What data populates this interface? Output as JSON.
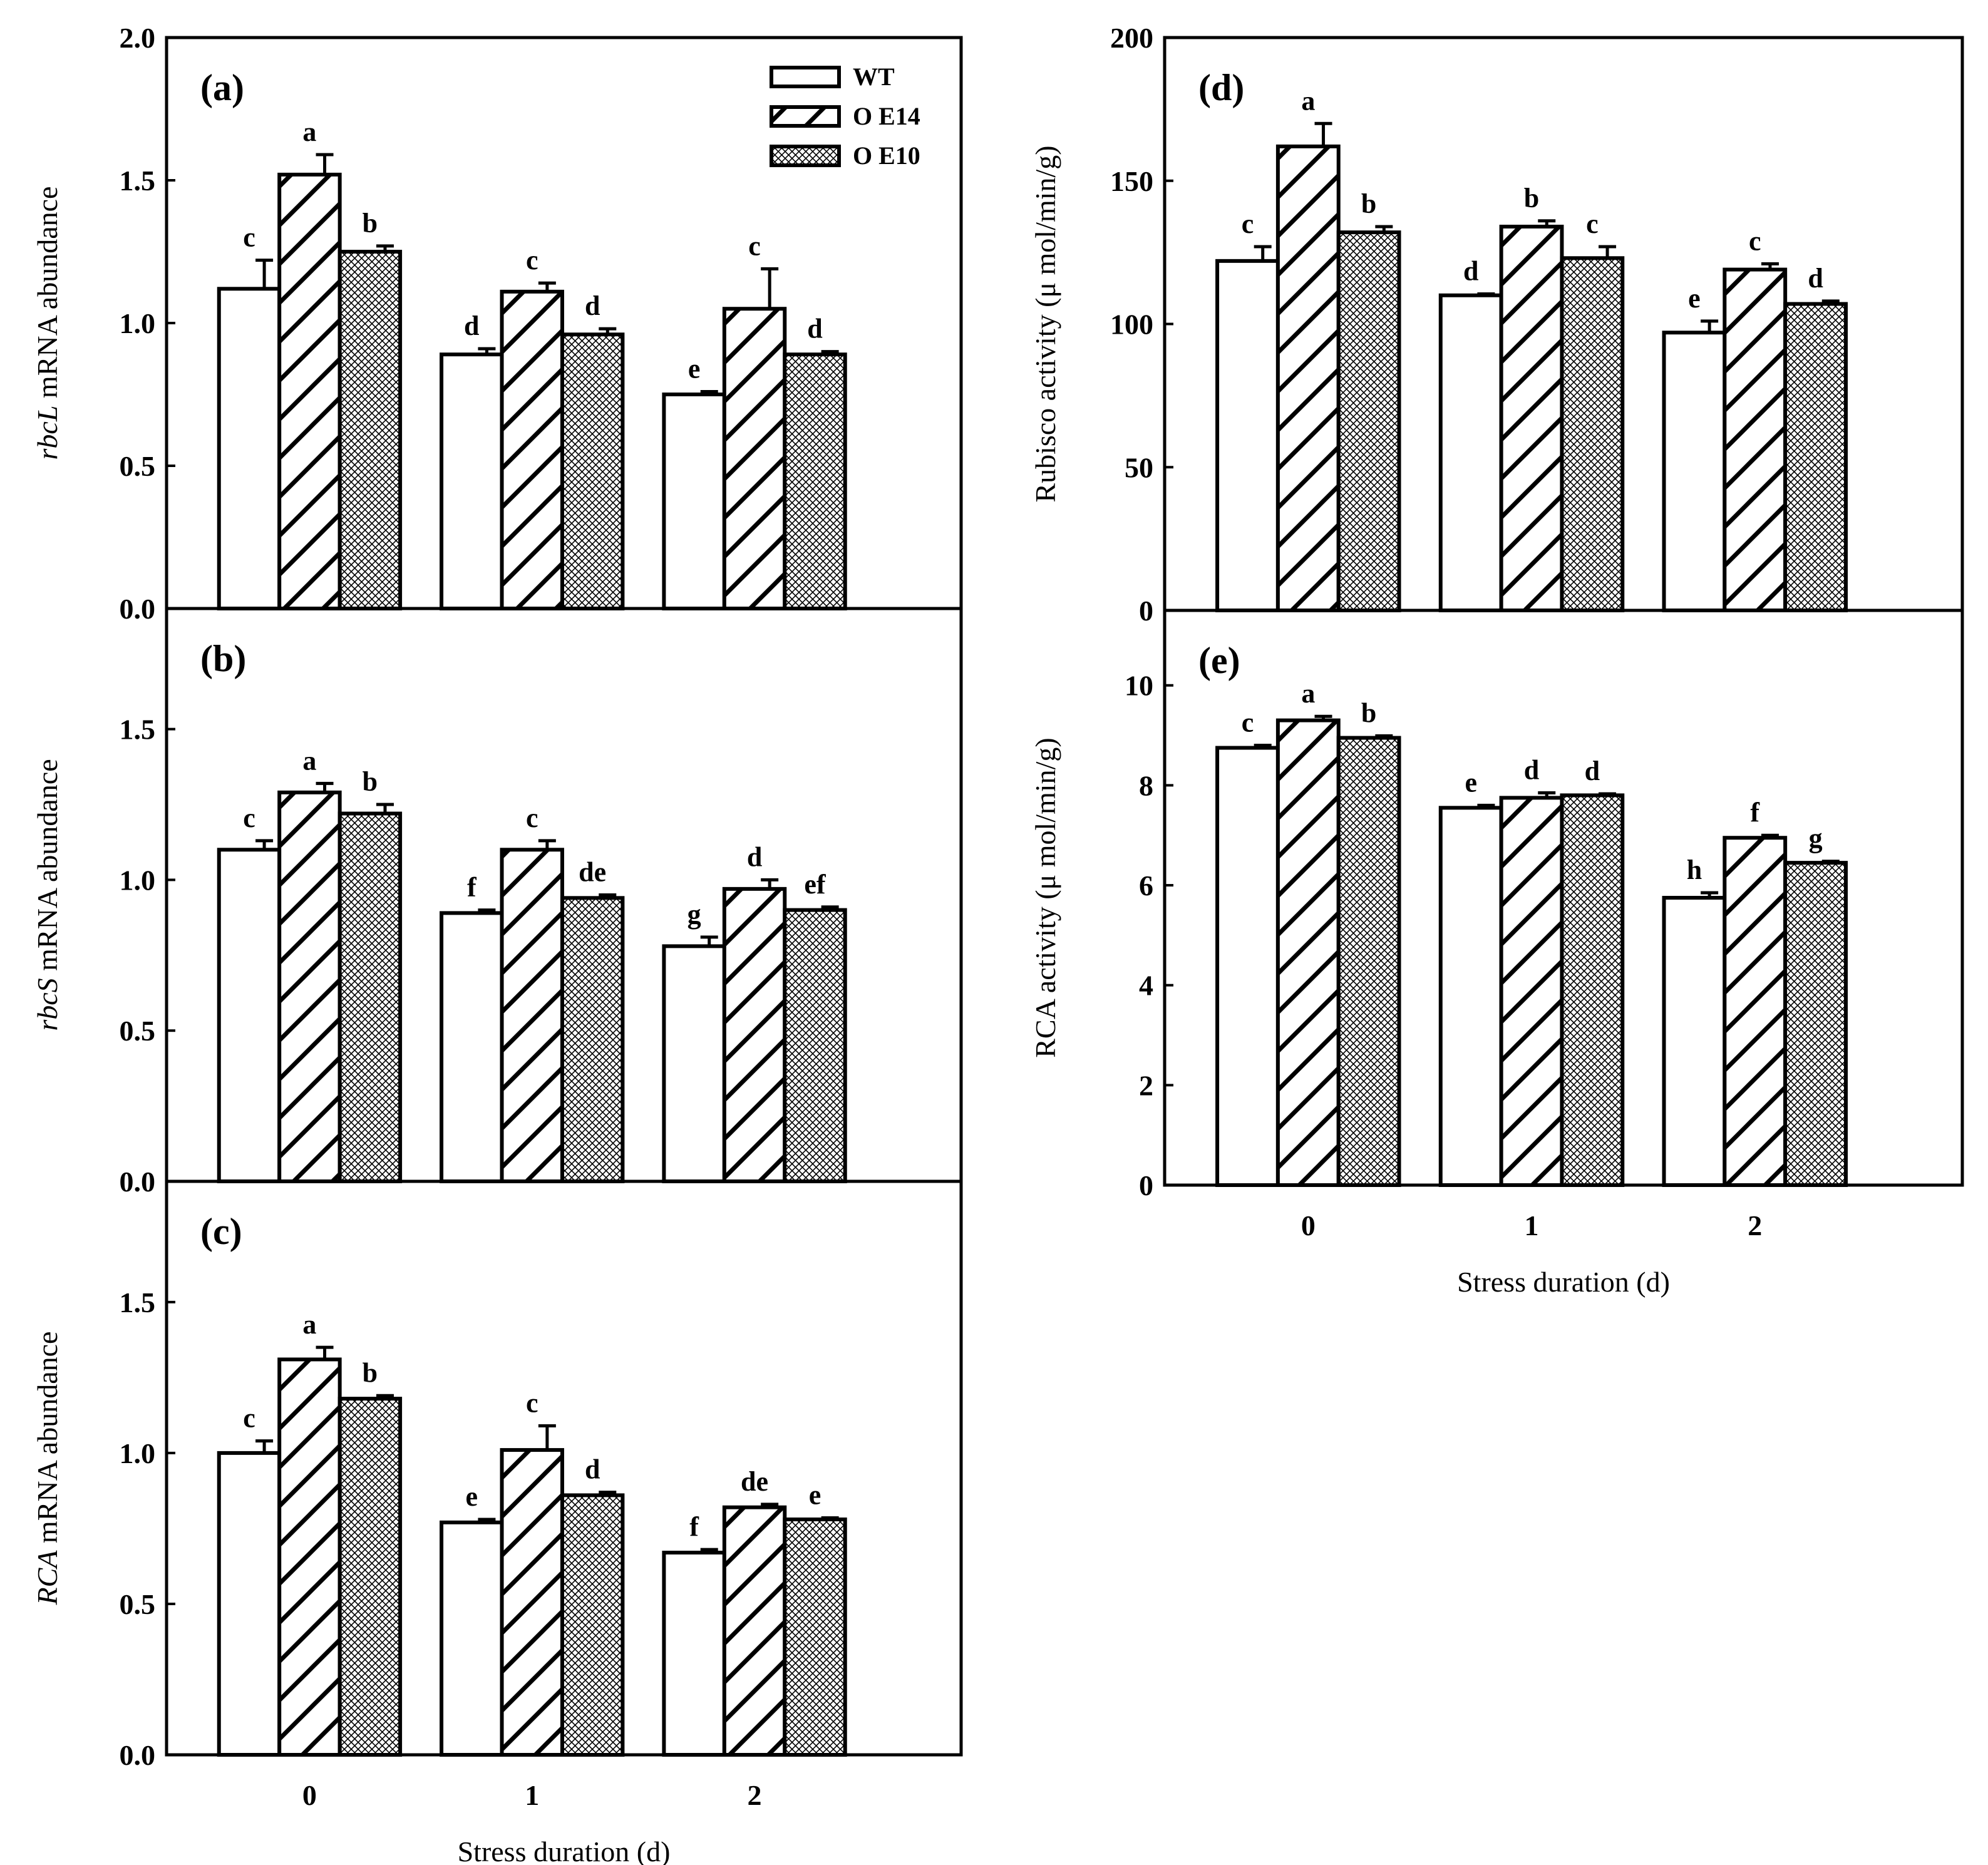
{
  "colors": {
    "WT": "#ffffff",
    "OE14": "diagonal-hatch",
    "OE10": "crosshatch",
    "axis": "#000000"
  },
  "legend": {
    "placement": "top-right of panel (a)",
    "items": [
      {
        "label": "WT",
        "pattern": "white"
      },
      {
        "label": "O E14",
        "pattern": "diagonal-hatch"
      },
      {
        "label": "O E10",
        "pattern": "crosshatch"
      }
    ]
  },
  "chart_data": [
    {
      "id": "a",
      "type": "bar",
      "panel_tag": "(a)",
      "ylabel_italic": "rbcL",
      "ylabel_rest": " mRNA abundance",
      "xlabel": "",
      "ylim": [
        0,
        2.0
      ],
      "yticks": [
        "0.0",
        "0.5",
        "1.0",
        "1.5",
        "2.0"
      ],
      "categories": [
        "0",
        "1",
        "2"
      ],
      "show_categories": false,
      "series": [
        {
          "name": "WT",
          "values": [
            1.12,
            0.89,
            0.75
          ],
          "errors": [
            0.1,
            0.02,
            0.01
          ],
          "labels": [
            "c",
            "d",
            "e"
          ]
        },
        {
          "name": "O E14",
          "values": [
            1.52,
            1.11,
            1.05
          ],
          "errors": [
            0.07,
            0.03,
            0.14
          ],
          "labels": [
            "a",
            "c",
            "c"
          ]
        },
        {
          "name": "O E10",
          "values": [
            1.25,
            0.96,
            0.89
          ],
          "errors": [
            0.02,
            0.02,
            0.01
          ],
          "labels": [
            "b",
            "d",
            "d"
          ]
        }
      ]
    },
    {
      "id": "b",
      "type": "bar",
      "panel_tag": "(b)",
      "ylabel_italic": "rbcS",
      "ylabel_rest": " mRNA abundance",
      "xlabel": "",
      "ylim": [
        0,
        1.9
      ],
      "yticks": [
        "0.0",
        "0.5",
        "1.0",
        "1.5"
      ],
      "categories": [
        "0",
        "1",
        "2"
      ],
      "show_categories": false,
      "series": [
        {
          "name": "WT",
          "values": [
            1.1,
            0.89,
            0.78
          ],
          "errors": [
            0.03,
            0.01,
            0.03
          ],
          "labels": [
            "c",
            "f",
            "g"
          ]
        },
        {
          "name": "O E14",
          "values": [
            1.29,
            1.1,
            0.97
          ],
          "errors": [
            0.03,
            0.03,
            0.03
          ],
          "labels": [
            "a",
            "c",
            "d"
          ]
        },
        {
          "name": "O E10",
          "values": [
            1.22,
            0.94,
            0.9
          ],
          "errors": [
            0.03,
            0.01,
            0.01
          ],
          "labels": [
            "b",
            "de",
            "ef"
          ]
        }
      ]
    },
    {
      "id": "c",
      "type": "bar",
      "panel_tag": "(c)",
      "ylabel_italic": "RCA",
      "ylabel_rest": " mRNA abundance",
      "xlabel": "Stress duration (d)",
      "ylim": [
        0,
        1.9
      ],
      "yticks": [
        "0.0",
        "0.5",
        "1.0",
        "1.5"
      ],
      "categories": [
        "0",
        "1",
        "2"
      ],
      "show_categories": true,
      "series": [
        {
          "name": "WT",
          "values": [
            1.0,
            0.77,
            0.67
          ],
          "errors": [
            0.04,
            0.01,
            0.01
          ],
          "labels": [
            "c",
            "e",
            "f"
          ]
        },
        {
          "name": "O E14",
          "values": [
            1.31,
            1.01,
            0.82
          ],
          "errors": [
            0.04,
            0.08,
            0.01
          ],
          "labels": [
            "a",
            "c",
            "de"
          ]
        },
        {
          "name": "O E10",
          "values": [
            1.18,
            0.86,
            0.78
          ],
          "errors": [
            0.01,
            0.01,
            0.005
          ],
          "labels": [
            "b",
            "d",
            "e"
          ]
        }
      ]
    },
    {
      "id": "d",
      "type": "bar",
      "panel_tag": "(d)",
      "ylabel_italic": "",
      "ylabel_rest": "Rubisco  activity (μ mol/min/g)",
      "xlabel": "",
      "ylim": [
        0,
        200
      ],
      "yticks": [
        "0",
        "50",
        "100",
        "150",
        "200"
      ],
      "categories": [
        "0",
        "1",
        "2"
      ],
      "show_categories": false,
      "series": [
        {
          "name": "WT",
          "values": [
            122,
            110,
            97
          ],
          "errors": [
            5,
            0.5,
            4
          ],
          "labels": [
            "c",
            "d",
            "e"
          ]
        },
        {
          "name": "O E14",
          "values": [
            162,
            134,
            119
          ],
          "errors": [
            8,
            2,
            2
          ],
          "labels": [
            "a",
            "b",
            "c"
          ]
        },
        {
          "name": "O E10",
          "values": [
            132,
            123,
            107
          ],
          "errors": [
            2,
            4,
            1
          ],
          "labels": [
            "b",
            "c",
            "d"
          ]
        }
      ]
    },
    {
      "id": "e",
      "type": "bar",
      "panel_tag": "(e)",
      "ylabel_italic": "",
      "ylabel_rest": "RCA  activity (μ mol/min/g)",
      "xlabel": "Stress duration (d)",
      "ylim": [
        0,
        11.5
      ],
      "yticks": [
        "0",
        "2",
        "4",
        "6",
        "8",
        "10"
      ],
      "categories": [
        "0",
        "1",
        "2"
      ],
      "show_categories": true,
      "series": [
        {
          "name": "WT",
          "values": [
            8.75,
            7.55,
            5.75
          ],
          "errors": [
            0.05,
            0.05,
            0.1
          ],
          "labels": [
            "c",
            "e",
            "h"
          ]
        },
        {
          "name": "O E14",
          "values": [
            9.3,
            7.75,
            6.95
          ],
          "errors": [
            0.08,
            0.1,
            0.05
          ],
          "labels": [
            "a",
            "d",
            "f"
          ]
        },
        {
          "name": "O E10",
          "values": [
            8.95,
            7.8,
            6.45
          ],
          "errors": [
            0.04,
            0.03,
            0.03
          ],
          "labels": [
            "b",
            "d",
            "g"
          ]
        }
      ]
    }
  ]
}
